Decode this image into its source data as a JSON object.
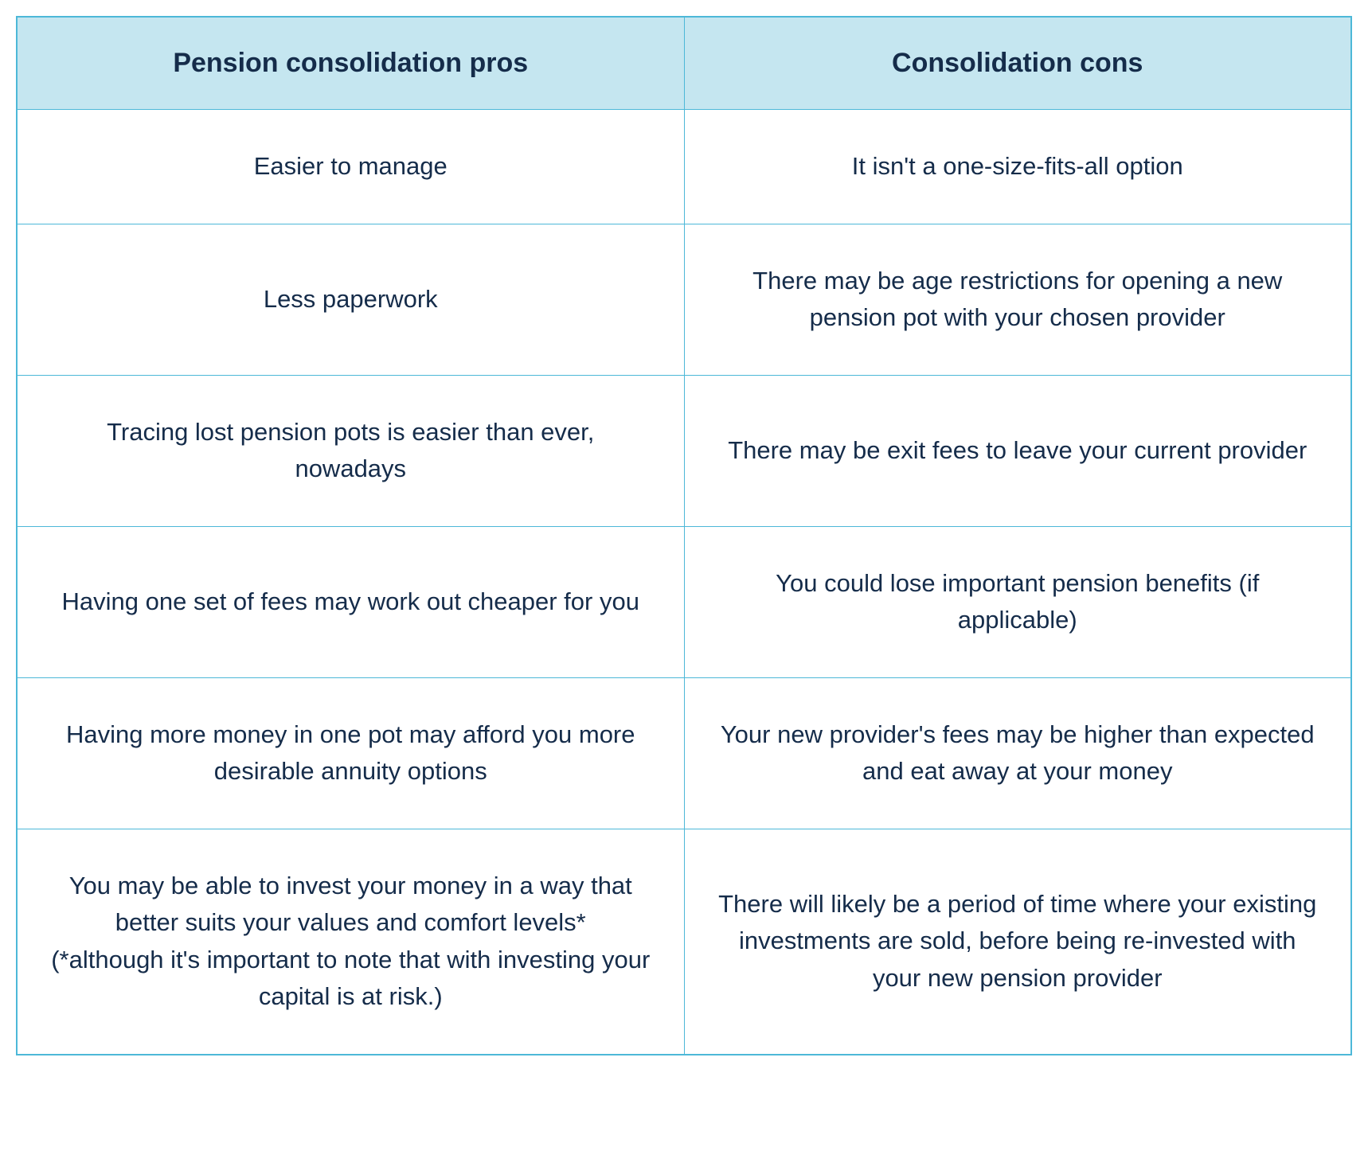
{
  "table": {
    "type": "table",
    "columns": [
      "Pension consolidation pros",
      "Consolidation cons"
    ],
    "rows": [
      [
        "Easier to manage",
        "It isn't a one-size-fits-all option"
      ],
      [
        "Less paperwork",
        "There may be age restrictions  for opening a new pension pot with your chosen provider"
      ],
      [
        "Tracing lost pension pots is easier than ever, nowadays",
        "There may be exit fees to leave your current provider"
      ],
      [
        "Having one set of fees may work out cheaper for you",
        "You could lose important pension benefits (if applicable)"
      ],
      [
        "Having more money in one pot may afford you more desirable annuity options",
        "Your new provider's fees may be higher than expected and eat away at your money"
      ],
      [
        "You may be able to invest your money in a way that better suits your values and comfort levels*\n(*although it's important to note that with investing your capital is at risk.)",
        "There will likely be a period of time where your existing investments are sold, before being re-invested with your new pension provider"
      ]
    ],
    "styling": {
      "border_color": "#4db8d8",
      "header_background": "#c5e6f0",
      "text_color": "#152c4a",
      "header_fontsize": 34,
      "body_fontsize": 31,
      "header_fontweight": 700,
      "body_fontweight": 400,
      "cell_padding": "48px 40px",
      "header_padding": "38px 20px",
      "text_align": "center",
      "background_color": "#ffffff"
    }
  }
}
